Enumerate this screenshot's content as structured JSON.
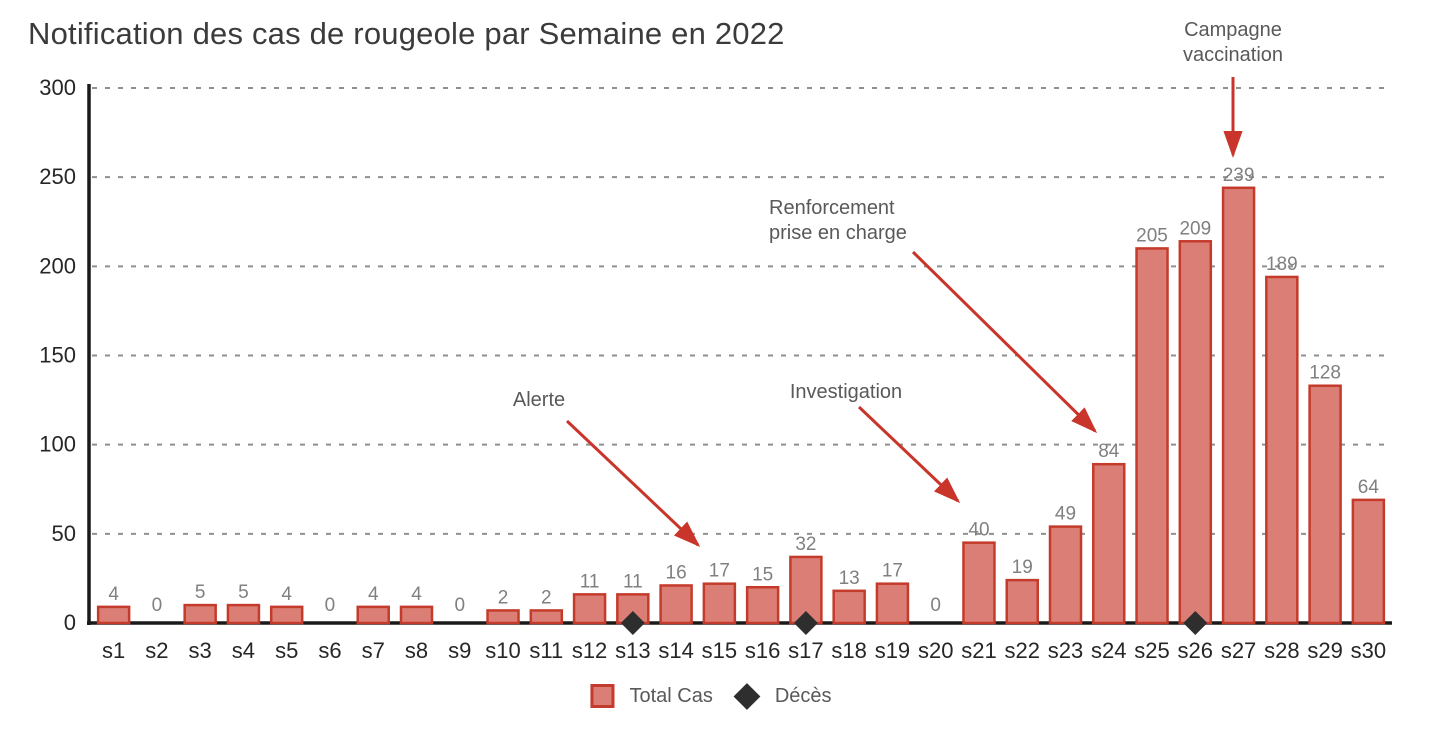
{
  "title": "Notification des cas de rougeole par Semaine en 2022",
  "chart_data": {
    "type": "bar",
    "categories": [
      "s1",
      "s2",
      "s3",
      "s4",
      "s5",
      "s6",
      "s7",
      "s8",
      "s9",
      "s10",
      "s11",
      "s12",
      "s13",
      "s14",
      "s15",
      "s16",
      "s17",
      "s18",
      "s19",
      "s20",
      "s21",
      "s22",
      "s23",
      "s24",
      "s25",
      "s26",
      "s27",
      "s28",
      "s29",
      "s30"
    ],
    "series": [
      {
        "name": "Total Cas",
        "type": "bar",
        "values": [
          4,
          0,
          5,
          5,
          4,
          0,
          4,
          4,
          0,
          2,
          2,
          11,
          11,
          16,
          17,
          15,
          32,
          13,
          17,
          0,
          40,
          19,
          49,
          84,
          205,
          209,
          239,
          189,
          128,
          64
        ]
      },
      {
        "name": "Décès",
        "type": "marker",
        "marker_shape": "diamond",
        "weeks": [
          "s13",
          "s17",
          "s26"
        ]
      }
    ],
    "title": "Notification des cas de rougeole par Semaine en 2022",
    "xlabel": "",
    "ylabel": "",
    "ylim": [
      0,
      300
    ],
    "yticks": [
      0,
      50,
      100,
      150,
      200,
      250,
      300
    ],
    "grid": "horizontal-dashed",
    "data_labels": true,
    "legend_position": "bottom-center",
    "annotations": [
      {
        "id": "alerte",
        "text": "Alerte",
        "points_to": "s15"
      },
      {
        "id": "investigation",
        "text": "Investigation",
        "points_to": "s21"
      },
      {
        "id": "renforcement",
        "text": "Renforcement\nprise en charge",
        "points_to": "s24"
      },
      {
        "id": "campagne",
        "text": "Campagne\nvaccination",
        "points_to": "s27"
      }
    ]
  },
  "legend": {
    "items": [
      {
        "label": "Total Cas",
        "swatch": "square"
      },
      {
        "label": "Décès",
        "swatch": "diamond"
      }
    ]
  },
  "colors": {
    "bar_fill": "#db7f76",
    "bar_border": "#c53b2b",
    "arrow": "#c9352b",
    "grid": "#909090",
    "axis": "#1a1a1a",
    "title": "#3b3b3b",
    "tick_label": "#262626",
    "data_label": "#808080",
    "annotation_text": "#595959",
    "diamond": "#2e2e2e"
  }
}
